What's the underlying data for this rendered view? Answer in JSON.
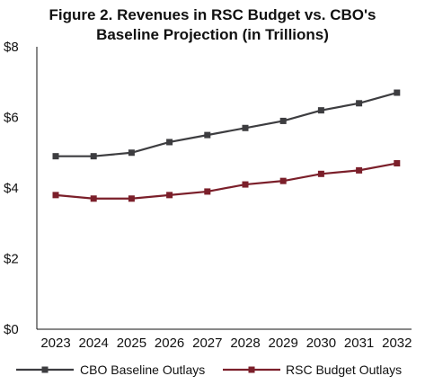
{
  "chart_data": {
    "type": "line",
    "title_lines": [
      "Figure 2. Revenues in  RSC Budget vs. CBO's",
      "Baseline Projection (in Trillions)"
    ],
    "x": [
      "2023",
      "2024",
      "2025",
      "2026",
      "2027",
      "2028",
      "2029",
      "2030",
      "2031",
      "2032"
    ],
    "ylim": [
      0,
      8
    ],
    "yticks": [
      0,
      2,
      4,
      6,
      8
    ],
    "ytick_labels": [
      "$0",
      "$2",
      "$4",
      "$6",
      "$8"
    ],
    "grid": false,
    "legend_position": "bottom",
    "series": [
      {
        "name": "CBO Baseline Outlays",
        "color": "#3d3d40",
        "values": [
          4.9,
          4.9,
          5.0,
          5.3,
          5.5,
          5.7,
          5.9,
          6.2,
          6.4,
          6.7
        ]
      },
      {
        "name": "RSC Budget Outlays",
        "color": "#7b1f2a",
        "values": [
          3.8,
          3.7,
          3.7,
          3.8,
          3.9,
          4.1,
          4.2,
          4.4,
          4.5,
          4.7
        ]
      }
    ]
  }
}
